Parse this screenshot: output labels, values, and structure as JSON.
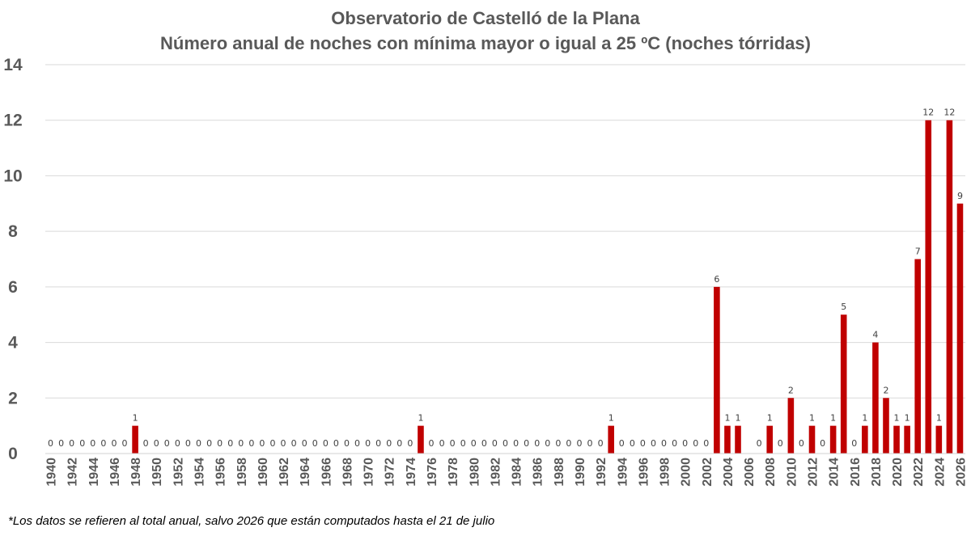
{
  "chart_data": {
    "type": "bar",
    "title": "Observatorio de Castelló de la Plana",
    "subtitle": "Número anual de noches con mínima mayor o igual a 25 ºC (noches tórridas)",
    "xlabel": "",
    "ylabel": "",
    "ylim": [
      0,
      14
    ],
    "yticks": [
      0,
      2,
      4,
      6,
      8,
      10,
      12,
      14
    ],
    "grid": true,
    "bar_color": "#C00000",
    "x": [
      1940,
      1941,
      1942,
      1943,
      1944,
      1945,
      1946,
      1947,
      1948,
      1949,
      1950,
      1951,
      1952,
      1953,
      1954,
      1955,
      1956,
      1957,
      1958,
      1959,
      1960,
      1961,
      1962,
      1963,
      1964,
      1965,
      1966,
      1967,
      1968,
      1969,
      1970,
      1971,
      1972,
      1973,
      1974,
      1975,
      1976,
      1977,
      1978,
      1979,
      1980,
      1981,
      1982,
      1983,
      1984,
      1985,
      1986,
      1987,
      1988,
      1989,
      1990,
      1991,
      1992,
      1993,
      1994,
      1995,
      1996,
      1997,
      1998,
      1999,
      2000,
      2001,
      2002,
      2003,
      2004,
      2005,
      2006,
      2007,
      2008,
      2009,
      2010,
      2011,
      2012,
      2013,
      2014,
      2015,
      2016,
      2017,
      2018,
      2019,
      2020,
      2021,
      2022,
      2023,
      2024,
      2025,
      2026
    ],
    "values": [
      0,
      0,
      0,
      0,
      0,
      0,
      0,
      0,
      1,
      0,
      0,
      0,
      0,
      0,
      0,
      0,
      0,
      0,
      0,
      0,
      0,
      0,
      0,
      0,
      0,
      0,
      0,
      0,
      0,
      0,
      0,
      0,
      0,
      0,
      0,
      1,
      0,
      0,
      0,
      0,
      0,
      0,
      0,
      0,
      0,
      0,
      0,
      0,
      0,
      0,
      0,
      0,
      0,
      1,
      0,
      0,
      0,
      0,
      0,
      0,
      0,
      0,
      0,
      6,
      1,
      1,
      null,
      0,
      1,
      0,
      2,
      0,
      1,
      0,
      1,
      5,
      0,
      1,
      4,
      2,
      1,
      1,
      7,
      12,
      1,
      12,
      9
    ],
    "xticks": [
      "1940",
      "1942",
      "1944",
      "1946",
      "1948",
      "1950",
      "1952",
      "1954",
      "1956",
      "1958",
      "1960",
      "1962",
      "1964",
      "1966",
      "1968",
      "1970",
      "1972",
      "1974",
      "1976",
      "1978",
      "1980",
      "1982",
      "1984",
      "1986",
      "1988",
      "1990",
      "1992",
      "1994",
      "1996",
      "1998",
      "2000",
      "2002",
      "2004",
      "2006",
      "2008",
      "2010",
      "2012",
      "2014",
      "2016",
      "2018",
      "2020",
      "2022",
      "2024",
      "2026"
    ]
  },
  "footnote": "*Los datos se refieren al total anual, salvo 2026 que están computados hasta el 21 de julio"
}
